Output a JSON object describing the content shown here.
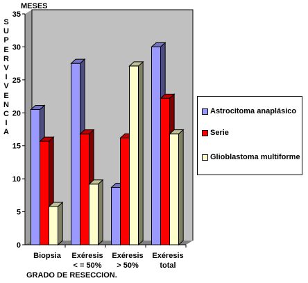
{
  "chart_data": {
    "type": "bar",
    "categories": [
      [
        "Biopsia"
      ],
      [
        "Exéresis",
        "< = 50%"
      ],
      [
        "Exéresis",
        "> 50%"
      ],
      [
        "Exéresis",
        "total"
      ]
    ],
    "series": [
      {
        "name": "Astrocitoma anaplásico",
        "values": [
          20.5,
          27.5,
          8.7,
          30
        ],
        "color": "#9999ff"
      },
      {
        "name": "Serie",
        "values": [
          15.7,
          16.8,
          16.2,
          22.2
        ],
        "color": "#ff0000"
      },
      {
        "name": "Glioblastoma multiforme",
        "values": [
          5.8,
          9.2,
          27.1,
          16.8
        ],
        "color": "#ffffcc"
      }
    ],
    "ylim": [
      0,
      35
    ],
    "yticks": [
      0,
      5,
      10,
      15,
      20,
      25,
      30,
      35
    ],
    "ylabel": "SUPERVIVENCIA",
    "yunit": "MESES",
    "xlabel": "GRADO DE RESECCION.",
    "grid": false,
    "legend": "right",
    "plot_background": "#c0c0c0"
  }
}
